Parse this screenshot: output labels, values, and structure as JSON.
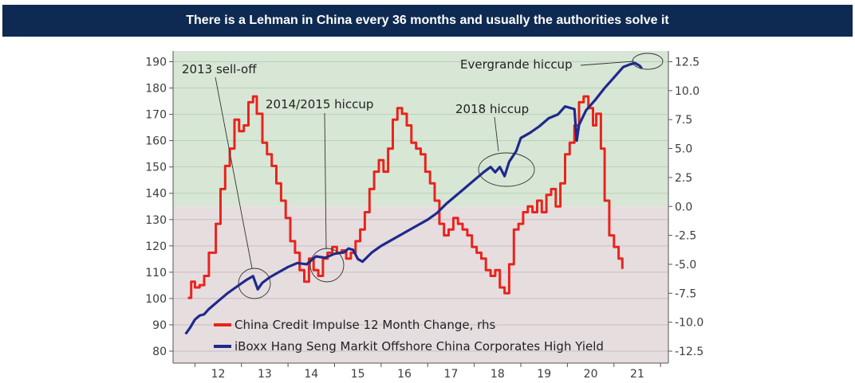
{
  "title": "There is a Lehman in China every 36 months and usually the authorities solve it",
  "colors": {
    "banner": "#0e2a52",
    "impulse": "#e8241c",
    "iboxx": "#1f2a8c",
    "bg_positive": "#d8e6d6",
    "bg_negative": "#e6dddf",
    "grid_positive": "#b7d1b4",
    "grid_negative": "#cbbdc1"
  },
  "chart_data": {
    "type": "line",
    "x_ticks": [
      "12",
      "13",
      "14",
      "15",
      "16",
      "17",
      "18",
      "19",
      "20",
      "21"
    ],
    "x_range": [
      2011.6,
      2022.1
    ],
    "y_left": {
      "min": 80,
      "max": 190,
      "ticks": [
        "190",
        "180",
        "170",
        "160",
        "150",
        "140",
        "130",
        "120",
        "110",
        "100",
        "90",
        "80"
      ]
    },
    "y_right": {
      "min": -12.5,
      "max": 12.5,
      "ticks": [
        "12.5",
        "10.0",
        "7.5",
        "5.0",
        "2.5",
        "0.0",
        "-2.5",
        "-5.0",
        "-7.5",
        "-10.0",
        "-12.5"
      ]
    },
    "legend_position": "bottom-left",
    "series": [
      {
        "name": "China Credit Impulse 12 Month Change, rhs",
        "axis": "right",
        "step": true,
        "points": [
          [
            2011.85,
            -7.9
          ],
          [
            2011.92,
            -6.5
          ],
          [
            2012.0,
            -7.0
          ],
          [
            2012.1,
            -6.8
          ],
          [
            2012.2,
            -6.0
          ],
          [
            2012.3,
            -4.0
          ],
          [
            2012.45,
            -1.5
          ],
          [
            2012.55,
            1.5
          ],
          [
            2012.65,
            3.5
          ],
          [
            2012.75,
            5.0
          ],
          [
            2012.85,
            7.5
          ],
          [
            2012.95,
            6.5
          ],
          [
            2013.05,
            7.0
          ],
          [
            2013.15,
            9.0
          ],
          [
            2013.25,
            9.5
          ],
          [
            2013.33,
            8.0
          ],
          [
            2013.45,
            5.5
          ],
          [
            2013.55,
            4.5
          ],
          [
            2013.65,
            3.5
          ],
          [
            2013.75,
            2.0
          ],
          [
            2013.85,
            0.5
          ],
          [
            2013.95,
            -1.0
          ],
          [
            2014.05,
            -3.0
          ],
          [
            2014.15,
            -4.0
          ],
          [
            2014.25,
            -5.5
          ],
          [
            2014.35,
            -6.5
          ],
          [
            2014.45,
            -4.5
          ],
          [
            2014.55,
            -5.5
          ],
          [
            2014.65,
            -6.0
          ],
          [
            2014.75,
            -4.5
          ],
          [
            2014.85,
            -4.0
          ],
          [
            2014.95,
            -3.5
          ],
          [
            2015.05,
            -4.0
          ],
          [
            2015.15,
            -3.8
          ],
          [
            2015.25,
            -4.5
          ],
          [
            2015.35,
            -4.0
          ],
          [
            2015.45,
            -3.0
          ],
          [
            2015.55,
            -2.0
          ],
          [
            2015.65,
            -0.5
          ],
          [
            2015.75,
            1.5
          ],
          [
            2015.85,
            3.0
          ],
          [
            2015.95,
            4.0
          ],
          [
            2016.05,
            3.0
          ],
          [
            2016.15,
            5.0
          ],
          [
            2016.25,
            7.5
          ],
          [
            2016.35,
            8.5
          ],
          [
            2016.45,
            8.0
          ],
          [
            2016.55,
            7.0
          ],
          [
            2016.65,
            5.5
          ],
          [
            2016.75,
            5.0
          ],
          [
            2016.85,
            4.5
          ],
          [
            2016.95,
            3.0
          ],
          [
            2017.05,
            2.0
          ],
          [
            2017.15,
            0.5
          ],
          [
            2017.25,
            -1.5
          ],
          [
            2017.35,
            -2.5
          ],
          [
            2017.45,
            -2.0
          ],
          [
            2017.55,
            -1.0
          ],
          [
            2017.65,
            -1.5
          ],
          [
            2017.75,
            -2.0
          ],
          [
            2017.85,
            -2.5
          ],
          [
            2017.95,
            -3.5
          ],
          [
            2018.05,
            -4.0
          ],
          [
            2018.15,
            -4.5
          ],
          [
            2018.25,
            -5.5
          ],
          [
            2018.35,
            -6.0
          ],
          [
            2018.45,
            -5.5
          ],
          [
            2018.55,
            -7.0
          ],
          [
            2018.65,
            -7.5
          ],
          [
            2018.75,
            -5.0
          ],
          [
            2018.85,
            -2.0
          ],
          [
            2018.95,
            -1.5
          ],
          [
            2019.05,
            -0.5
          ],
          [
            2019.15,
            0.0
          ],
          [
            2019.25,
            -0.5
          ],
          [
            2019.35,
            0.5
          ],
          [
            2019.45,
            -0.5
          ],
          [
            2019.55,
            1.0
          ],
          [
            2019.65,
            1.5
          ],
          [
            2019.75,
            0.0
          ],
          [
            2019.85,
            2.0
          ],
          [
            2019.95,
            4.5
          ],
          [
            2020.05,
            5.5
          ],
          [
            2020.15,
            7.0
          ],
          [
            2020.25,
            9.0
          ],
          [
            2020.35,
            9.5
          ],
          [
            2020.45,
            8.5
          ],
          [
            2020.55,
            7.0
          ],
          [
            2020.62,
            8.0
          ],
          [
            2020.72,
            5.0
          ],
          [
            2020.8,
            0.5
          ],
          [
            2020.9,
            -2.5
          ],
          [
            2021.0,
            -3.5
          ],
          [
            2021.1,
            -4.5
          ],
          [
            2021.18,
            -5.4
          ]
        ]
      },
      {
        "name": "iBoxx Hang Seng Markit Offshore China Corporates High Yield",
        "axis": "left",
        "step": false,
        "points": [
          [
            2011.8,
            86.5
          ],
          [
            2011.9,
            89
          ],
          [
            2012.0,
            92
          ],
          [
            2012.1,
            93.5
          ],
          [
            2012.2,
            94
          ],
          [
            2012.3,
            96
          ],
          [
            2012.5,
            99
          ],
          [
            2012.7,
            102
          ],
          [
            2012.9,
            104.5
          ],
          [
            2013.1,
            107
          ],
          [
            2013.25,
            108.5
          ],
          [
            2013.35,
            103.5
          ],
          [
            2013.45,
            106
          ],
          [
            2013.6,
            108
          ],
          [
            2013.8,
            110
          ],
          [
            2014.0,
            112
          ],
          [
            2014.2,
            113.5
          ],
          [
            2014.4,
            113
          ],
          [
            2014.6,
            116
          ],
          [
            2014.8,
            115.5
          ],
          [
            2015.0,
            117
          ],
          [
            2015.2,
            117.5
          ],
          [
            2015.3,
            119
          ],
          [
            2015.4,
            118.5
          ],
          [
            2015.5,
            115
          ],
          [
            2015.6,
            114
          ],
          [
            2015.8,
            117.5
          ],
          [
            2016.0,
            120
          ],
          [
            2016.2,
            122
          ],
          [
            2016.4,
            124
          ],
          [
            2016.6,
            126
          ],
          [
            2016.8,
            128
          ],
          [
            2017.0,
            130
          ],
          [
            2017.2,
            132.5
          ],
          [
            2017.4,
            136
          ],
          [
            2017.6,
            139
          ],
          [
            2017.8,
            142
          ],
          [
            2018.0,
            145
          ],
          [
            2018.2,
            148
          ],
          [
            2018.35,
            150
          ],
          [
            2018.45,
            148
          ],
          [
            2018.55,
            150
          ],
          [
            2018.65,
            146.5
          ],
          [
            2018.75,
            152
          ],
          [
            2018.9,
            156
          ],
          [
            2019.0,
            161
          ],
          [
            2019.2,
            163
          ],
          [
            2019.4,
            165.5
          ],
          [
            2019.6,
            168.5
          ],
          [
            2019.8,
            170
          ],
          [
            2019.95,
            173
          ],
          [
            2020.15,
            172
          ],
          [
            2020.2,
            160
          ],
          [
            2020.25,
            166
          ],
          [
            2020.4,
            171.5
          ],
          [
            2020.6,
            175.5
          ],
          [
            2020.8,
            180
          ],
          [
            2021.0,
            184
          ],
          [
            2021.2,
            188
          ],
          [
            2021.35,
            189
          ],
          [
            2021.45,
            189.5
          ],
          [
            2021.55,
            188.5
          ],
          [
            2021.6,
            187.5
          ]
        ]
      }
    ],
    "annotations": [
      {
        "text": "2013 sell-off",
        "x": 2013.3,
        "y": 105
      },
      {
        "text": "2014/2015 hiccup",
        "x": 2014.85,
        "y": 115.5
      },
      {
        "text": "2018 hiccup",
        "x": 2018.28,
        "y": 148.5
      },
      {
        "text": "Evergrande hiccup",
        "x": 2021.3,
        "y": 189
      }
    ]
  }
}
